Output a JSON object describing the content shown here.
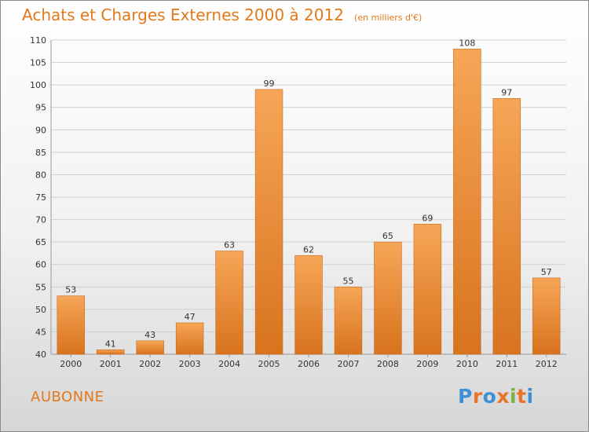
{
  "header": {
    "title": "Achats et Charges Externes 2000 à 2012",
    "subtitle": "(en milliers d'€)"
  },
  "footer": {
    "city": "AUBONNE",
    "logo_text": "Proxiti",
    "logo_colors": [
      "#3d8fd6",
      "#e8742a",
      "#3d8fd6",
      "#e8742a",
      "#7cb342",
      "#e8742a",
      "#3d8fd6"
    ]
  },
  "colors": {
    "bar_light": "#f6a657",
    "bar_dark": "#d8731e",
    "title": "#e2791a"
  },
  "chart_data": {
    "type": "bar",
    "title": "Achats et Charges Externes 2000 à 2012",
    "subtitle": "(en milliers d'€)",
    "categories": [
      "2000",
      "2001",
      "2002",
      "2003",
      "2004",
      "2005",
      "2006",
      "2007",
      "2008",
      "2009",
      "2010",
      "2011",
      "2012"
    ],
    "values": [
      53,
      41,
      43,
      47,
      63,
      99,
      62,
      55,
      65,
      69,
      108,
      97,
      57
    ],
    "ylim": [
      40,
      110
    ],
    "yticks": [
      40,
      45,
      50,
      55,
      60,
      65,
      70,
      75,
      80,
      85,
      90,
      95,
      100,
      105,
      110
    ],
    "grid": true,
    "xlabel": "",
    "ylabel": ""
  }
}
